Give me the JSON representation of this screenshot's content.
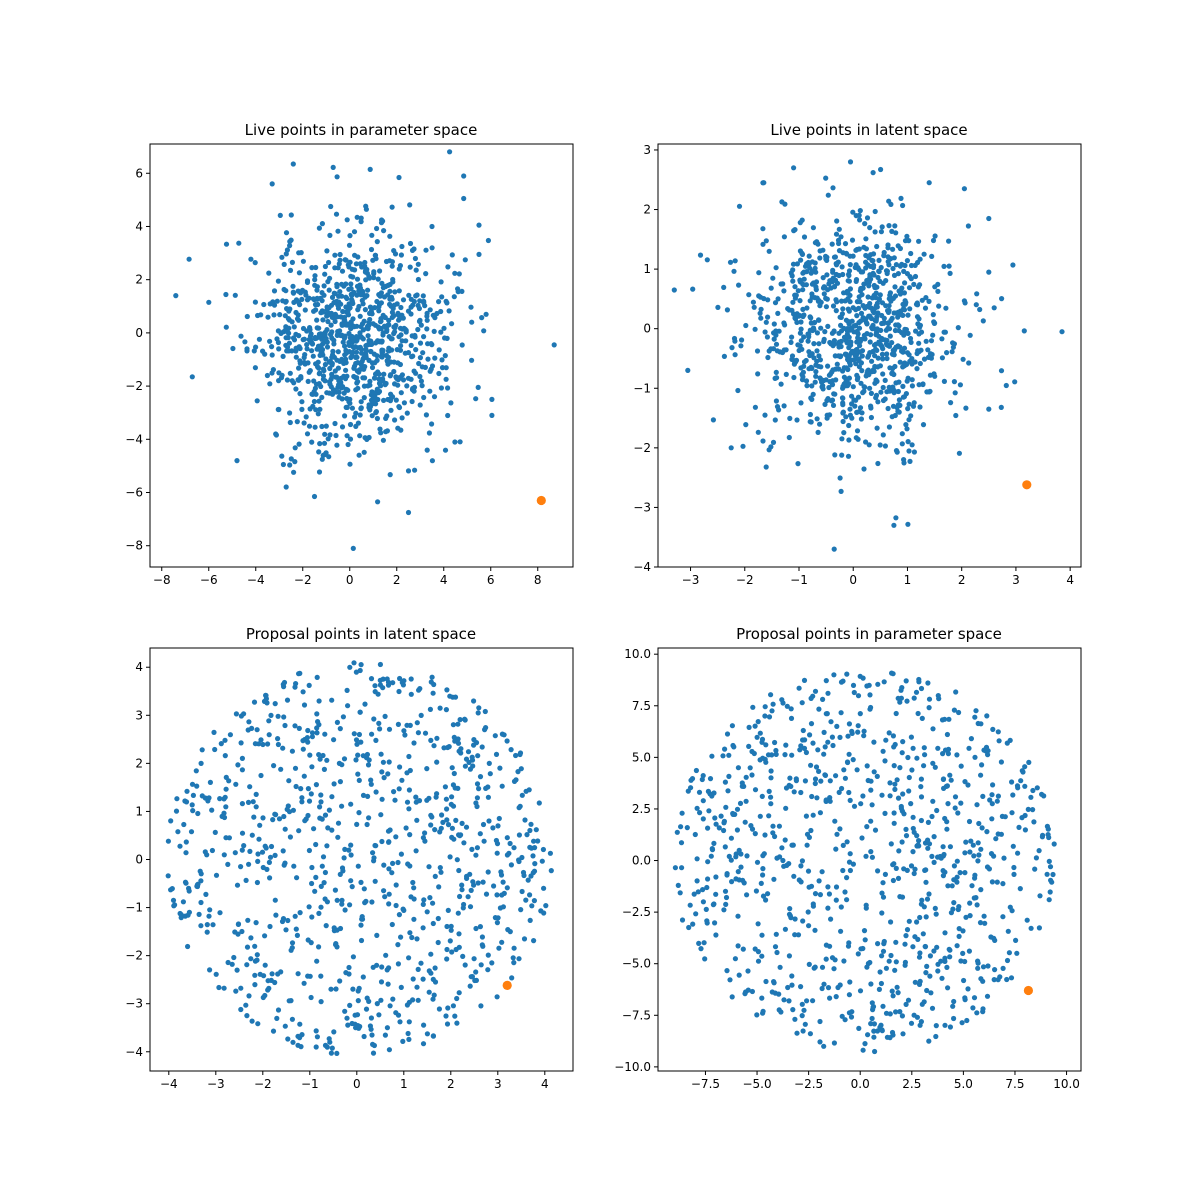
{
  "chart_data": [
    {
      "type": "scatter",
      "title": "Live points in parameter space",
      "xlabel": "",
      "ylabel": "",
      "xlim": [
        -8.5,
        9.5
      ],
      "ylim": [
        -8.8,
        7.1
      ],
      "xticks": [
        -8,
        -6,
        -4,
        -2,
        0,
        2,
        4,
        6,
        8
      ],
      "yticks": [
        -8,
        -6,
        -4,
        -2,
        0,
        2,
        4,
        6
      ],
      "grid": false,
      "distribution": {
        "shape": "gaussian",
        "count": 1000,
        "seed": 11,
        "center": [
          0.1,
          -0.1
        ],
        "spread": [
          2.0,
          2.0
        ]
      },
      "points": [
        [
          -7.4,
          1.4
        ],
        [
          -6.7,
          -1.65
        ],
        [
          -6.0,
          1.15
        ],
        [
          8.7,
          -0.45
        ],
        [
          6.05,
          -2.5
        ],
        [
          6.05,
          -3.1
        ],
        [
          5.5,
          4.05
        ],
        [
          4.85,
          5.05
        ],
        [
          2.5,
          -6.75
        ],
        [
          0.15,
          -8.1
        ],
        [
          -1.5,
          -6.15
        ],
        [
          -2.4,
          6.35
        ],
        [
          -3.3,
          5.6
        ],
        [
          -4.8,
          -4.8
        ],
        [
          5.5,
          2.95
        ],
        [
          5.8,
          0.7
        ]
      ],
      "highlight": [
        [
          8.15,
          -6.3
        ]
      ],
      "colors": {
        "series": "#1f77b4",
        "highlight": "#ff7f0e"
      }
    },
    {
      "type": "scatter",
      "title": "Live points in latent space",
      "xlabel": "",
      "ylabel": "",
      "xlim": [
        -3.6,
        4.2
      ],
      "ylim": [
        -4.0,
        3.1
      ],
      "xticks": [
        -3,
        -2,
        -1,
        0,
        1,
        2,
        3,
        4
      ],
      "yticks": [
        -4,
        -3,
        -2,
        -1,
        0,
        1,
        2,
        3
      ],
      "grid": false,
      "distribution": {
        "shape": "gaussian",
        "count": 1000,
        "seed": 22,
        "center": [
          0.0,
          0.0
        ],
        "spread": [
          0.95,
          0.95
        ]
      },
      "points": [
        [
          -3.3,
          0.65
        ],
        [
          -3.05,
          -0.7
        ],
        [
          3.85,
          -0.05
        ],
        [
          -0.35,
          -3.7
        ],
        [
          0.75,
          -3.3
        ],
        [
          -0.05,
          2.8
        ],
        [
          -1.1,
          2.7
        ],
        [
          2.5,
          1.85
        ],
        [
          2.6,
          0.35
        ],
        [
          2.5,
          -1.35
        ],
        [
          -2.25,
          -2.0
        ],
        [
          -1.65,
          2.45
        ],
        [
          2.05,
          2.35
        ],
        [
          1.4,
          2.45
        ]
      ],
      "highlight": [
        [
          3.2,
          -2.62
        ]
      ],
      "colors": {
        "series": "#1f77b4",
        "highlight": "#ff7f0e"
      }
    },
    {
      "type": "scatter",
      "title": "Proposal points in latent space",
      "xlabel": "",
      "ylabel": "",
      "xlim": [
        -4.4,
        4.6
      ],
      "ylim": [
        -4.4,
        4.4
      ],
      "xticks": [
        -4,
        -3,
        -2,
        -1,
        0,
        1,
        2,
        3,
        4
      ],
      "yticks": [
        -4,
        -3,
        -2,
        -1,
        0,
        1,
        2,
        3,
        4
      ],
      "grid": false,
      "distribution": {
        "shape": "uniform-disk",
        "count": 900,
        "seed": 33,
        "center": [
          0.05,
          0.0
        ],
        "radius": 4.1
      },
      "points": [],
      "highlight": [
        [
          3.2,
          -2.62
        ]
      ],
      "colors": {
        "series": "#1f77b4",
        "highlight": "#ff7f0e"
      }
    },
    {
      "type": "scatter",
      "title": "Proposal points in parameter space",
      "xlabel": "",
      "ylabel": "",
      "xlim": [
        -9.8,
        10.7
      ],
      "ylim": [
        -10.2,
        10.3
      ],
      "xticks": [
        -7.5,
        -5.0,
        -2.5,
        0.0,
        2.5,
        5.0,
        7.5,
        10.0
      ],
      "yticks": [
        -10.0,
        -7.5,
        -5.0,
        -2.5,
        0.0,
        2.5,
        5.0,
        7.5,
        10.0
      ],
      "tick_format": "fixed1",
      "grid": false,
      "distribution": {
        "shape": "uniform-disk",
        "count": 900,
        "seed": 44,
        "center": [
          0.2,
          0.0
        ],
        "radius": 9.3
      },
      "points": [],
      "highlight": [
        [
          8.15,
          -6.3
        ]
      ],
      "colors": {
        "series": "#1f77b4",
        "highlight": "#ff7f0e"
      }
    }
  ]
}
